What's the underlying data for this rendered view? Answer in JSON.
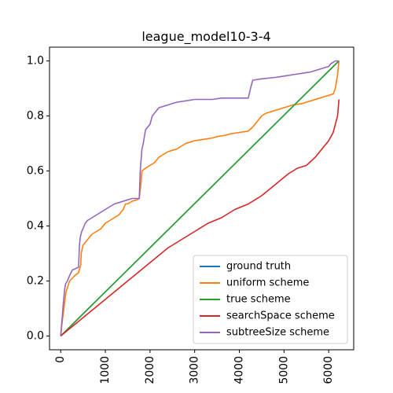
{
  "chart_data": {
    "type": "line",
    "title": "league_model10-3-4",
    "xlabel": "",
    "ylabel": "",
    "xlim": [
      -250,
      6560
    ],
    "ylim": [
      -0.05,
      1.05
    ],
    "xticks": [
      0,
      1000,
      2000,
      3000,
      4000,
      5000,
      6000
    ],
    "yticks": [
      0.0,
      0.2,
      0.4,
      0.6,
      0.8,
      1.0
    ],
    "ytick_labels": [
      "0.0",
      "0.2",
      "0.4",
      "0.6",
      "0.8",
      "1.0"
    ],
    "grid": false,
    "legend_position": "lower-right",
    "series": [
      {
        "name": "ground truth",
        "color": "#1f77b4",
        "x": [
          0,
          6230
        ],
        "y": [
          0.0,
          1.0
        ]
      },
      {
        "name": "uniform scheme",
        "color": "#ff7f0e",
        "x": [
          0,
          40,
          80,
          120,
          160,
          200,
          260,
          320,
          400,
          450,
          460,
          500,
          600,
          700,
          800,
          900,
          1000,
          1100,
          1200,
          1300,
          1400,
          1450,
          1500,
          1600,
          1700,
          1760,
          1800,
          1820,
          1900,
          2000,
          2100,
          2150,
          2200,
          2300,
          2400,
          2500,
          2600,
          2700,
          2800,
          2900,
          3000,
          3200,
          3400,
          3500,
          3700,
          3800,
          4000,
          4200,
          4300,
          4400,
          4500,
          4600,
          4800,
          5000,
          5200,
          5400,
          5500,
          5600,
          5800,
          5900,
          6000,
          6100,
          6150,
          6200,
          6230
        ],
        "y": [
          0.0,
          0.06,
          0.11,
          0.16,
          0.18,
          0.2,
          0.21,
          0.22,
          0.23,
          0.26,
          0.3,
          0.33,
          0.35,
          0.37,
          0.38,
          0.39,
          0.41,
          0.42,
          0.43,
          0.44,
          0.46,
          0.48,
          0.48,
          0.49,
          0.495,
          0.5,
          0.56,
          0.6,
          0.61,
          0.62,
          0.63,
          0.64,
          0.65,
          0.66,
          0.67,
          0.675,
          0.68,
          0.69,
          0.7,
          0.705,
          0.71,
          0.715,
          0.72,
          0.725,
          0.73,
          0.735,
          0.74,
          0.745,
          0.76,
          0.78,
          0.8,
          0.81,
          0.82,
          0.83,
          0.84,
          0.845,
          0.85,
          0.855,
          0.865,
          0.87,
          0.875,
          0.88,
          0.9,
          0.95,
          1.0
        ]
      },
      {
        "name": "true scheme",
        "color": "#2ca02c",
        "x": [
          0,
          6230
        ],
        "y": [
          0.0,
          1.0
        ]
      },
      {
        "name": "searchSpace scheme",
        "color": "#d62728",
        "x": [
          0,
          300,
          600,
          900,
          1200,
          1500,
          1800,
          2100,
          2400,
          2700,
          3000,
          3300,
          3600,
          3900,
          4200,
          4500,
          4800,
          5100,
          5300,
          5500,
          5700,
          5850,
          6000,
          6100,
          6150,
          6200,
          6220,
          6230
        ],
        "y": [
          0.0,
          0.04,
          0.08,
          0.12,
          0.16,
          0.2,
          0.24,
          0.28,
          0.32,
          0.35,
          0.38,
          0.41,
          0.43,
          0.46,
          0.48,
          0.51,
          0.55,
          0.59,
          0.61,
          0.62,
          0.65,
          0.68,
          0.71,
          0.74,
          0.77,
          0.8,
          0.84,
          0.86
        ]
      },
      {
        "name": "subtreeSize scheme",
        "color": "#9467bd",
        "x": [
          0,
          30,
          60,
          90,
          110,
          150,
          200,
          260,
          330,
          400,
          420,
          440,
          470,
          500,
          550,
          600,
          700,
          800,
          900,
          1000,
          1100,
          1200,
          1300,
          1400,
          1500,
          1600,
          1700,
          1760,
          1780,
          1820,
          1850,
          1900,
          1950,
          2000,
          2050,
          2200,
          2300,
          2400,
          2600,
          2800,
          3000,
          3200,
          3400,
          3600,
          4000,
          4200,
          4250,
          4300,
          4500,
          4800,
          5000,
          5200,
          5400,
          5600,
          5800,
          6000,
          6050,
          6100,
          6150,
          6230
        ],
        "y": [
          0.0,
          0.06,
          0.12,
          0.17,
          0.19,
          0.2,
          0.22,
          0.24,
          0.245,
          0.25,
          0.33,
          0.36,
          0.38,
          0.39,
          0.41,
          0.42,
          0.43,
          0.44,
          0.45,
          0.46,
          0.47,
          0.48,
          0.485,
          0.49,
          0.495,
          0.5,
          0.5,
          0.5,
          0.6,
          0.68,
          0.7,
          0.75,
          0.76,
          0.77,
          0.8,
          0.83,
          0.835,
          0.84,
          0.85,
          0.855,
          0.86,
          0.86,
          0.86,
          0.865,
          0.865,
          0.865,
          0.9,
          0.93,
          0.935,
          0.94,
          0.945,
          0.95,
          0.955,
          0.96,
          0.97,
          0.98,
          0.99,
          0.995,
          1.0,
          1.0
        ]
      }
    ]
  }
}
